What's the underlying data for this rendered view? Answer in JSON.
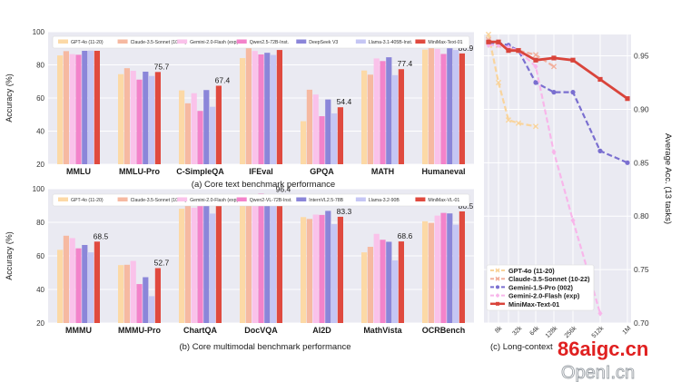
{
  "chart_data": [
    {
      "id": "text",
      "type": "bar",
      "caption": "(a) Core text benchmark performance",
      "ylabel": "Accuracy (%)",
      "ylim": [
        20,
        100
      ],
      "yticks": [
        20,
        40,
        60,
        80,
        100
      ],
      "grid": true,
      "legend_position": "top",
      "categories": [
        "MMLU",
        "MMLU-Pro",
        "C-SimpleQA",
        "IFEval",
        "GPQA",
        "MATH",
        "Humaneval"
      ],
      "series": [
        {
          "name": "GPT-4o (11-20)",
          "color": "#fcd9a6",
          "values": [
            85.7,
            74.4,
            64.6,
            84.1,
            46.0,
            76.6,
            89.2
          ]
        },
        {
          "name": "Claude-3.5-Sonnet (10-22)",
          "color": "#f6b9a1",
          "values": [
            88.3,
            78.0,
            56.8,
            90.1,
            65.0,
            74.1,
            93.7
          ]
        },
        {
          "name": "Gemini-2.0-Flash (exp)",
          "color": "#fac2ea",
          "values": [
            86.5,
            76.4,
            62.9,
            88.4,
            62.1,
            83.9,
            89.6
          ]
        },
        {
          "name": "Qwen2.5-72B-Inst.",
          "color": "#f383ca",
          "values": [
            86.1,
            71.1,
            52.2,
            86.3,
            49.0,
            82.3,
            86.6
          ]
        },
        {
          "name": "DeepSeek V3",
          "color": "#8b86d9",
          "values": [
            88.5,
            75.9,
            64.8,
            87.3,
            59.1,
            84.6,
            92.1
          ]
        },
        {
          "name": "Llama-3.1-405B-Inst.",
          "color": "#c5c6f4",
          "values": [
            88.6,
            73.3,
            54.7,
            86.0,
            50.7,
            73.8,
            89.0
          ]
        },
        {
          "name": "MiniMax-Text-01",
          "color": "#e04a3f",
          "values": [
            88.5,
            75.7,
            67.4,
            89.0,
            54.4,
            77.4,
            86.9
          ]
        }
      ],
      "labels": [
        "88.5",
        "75.7",
        "67.4",
        "89.0",
        "54.4",
        "77.4",
        "86.9"
      ]
    },
    {
      "id": "vl",
      "type": "bar",
      "caption": "(b) Core multimodal benchmark performance",
      "ylabel": "Accuracy (%)",
      "ylim": [
        20,
        100
      ],
      "yticks": [
        20,
        40,
        60,
        80,
        100
      ],
      "grid": true,
      "legend_position": "top",
      "categories": [
        "MMMU",
        "MMMU-Pro",
        "ChartQA",
        "DocVQA",
        "AI2D",
        "MathVista",
        "OCRBench"
      ],
      "series": [
        {
          "name": "GPT-4o (11-20)",
          "color": "#fcd9a6",
          "values": [
            63.6,
            54.5,
            88.1,
            91.1,
            83.1,
            62.1,
            80.6
          ]
        },
        {
          "name": "Claude-3.5-Sonnet (10-22)",
          "color": "#f6b9a1",
          "values": [
            72.0,
            54.7,
            90.8,
            94.2,
            82.0,
            65.4,
            79.7
          ]
        },
        {
          "name": "Gemini-2.0-Flash (exp)",
          "color": "#fac2ea",
          "values": [
            70.6,
            57.0,
            88.7,
            93.1,
            84.6,
            73.1,
            84.0
          ]
        },
        {
          "name": "Qwen2-VL-72B-Inst.",
          "color": "#f383ca",
          "values": [
            64.5,
            43.2,
            91.2,
            97.1,
            84.4,
            69.6,
            85.6
          ]
        },
        {
          "name": "InternVL2.5-78B",
          "color": "#8b86d9",
          "values": [
            66.5,
            47.3,
            91.5,
            96.1,
            86.8,
            68.4,
            85.3
          ]
        },
        {
          "name": "Llama-3.2-90B",
          "color": "#c5c6f4",
          "values": [
            62.1,
            36.0,
            85.2,
            90.1,
            78.9,
            57.3,
            78.6
          ]
        },
        {
          "name": "MiniMax-VL-01",
          "color": "#e04a3f",
          "values": [
            68.5,
            52.7,
            91.7,
            96.4,
            83.3,
            68.6,
            86.5
          ]
        }
      ],
      "labels": [
        "68.5",
        "52.7",
        "91.7",
        "96.4",
        "83.3",
        "68.6",
        "86.5"
      ]
    },
    {
      "id": "long",
      "type": "line",
      "caption": "(c) Long-context",
      "ylabel": "Average Acc. (13 tasks)",
      "ylim": [
        0.7,
        0.97
      ],
      "yticks": [
        0.7,
        0.75,
        0.8,
        0.85,
        0.9,
        0.95
      ],
      "ytick_labels": [
        "0.70",
        "0.75",
        "0.80",
        "0.85",
        "0.90",
        "0.95"
      ],
      "x": [
        "4k",
        "8k",
        "16k",
        "32k",
        "64k",
        "128k",
        "256k",
        "512k",
        "1M"
      ],
      "xtick_labels": [
        "8k",
        "32k",
        "64k",
        "128k",
        "256k",
        "512k",
        "1M"
      ],
      "legend_position": "lower left",
      "series": [
        {
          "name": "GPT-4o (11-20)",
          "color": "#f9d49c",
          "dashed": true,
          "marker": "x",
          "values": [
            0.97,
            0.925,
            0.89,
            0.887,
            0.884,
            null,
            null,
            null,
            null
          ]
        },
        {
          "name": "Claude-3.5-Sonnet (10-22)",
          "color": "#f2b09d",
          "dashed": true,
          "marker": "x",
          "values": [
            0.965,
            0.96,
            0.957,
            0.955,
            0.951,
            0.94,
            null,
            null,
            null
          ]
        },
        {
          "name": "Gemini-1.5-Pro (002)",
          "color": "#7a6fd0",
          "dashed": true,
          "marker": "circle",
          "values": [
            0.962,
            0.962,
            0.96,
            0.955,
            0.925,
            0.916,
            0.916,
            0.861,
            0.85
          ]
        },
        {
          "name": "Gemini-2.0-Flash (exp)",
          "color": "#f8b6ea",
          "dashed": true,
          "marker": "diamond",
          "values": [
            0.96,
            0.96,
            0.958,
            0.955,
            0.94,
            0.86,
            0.796,
            0.709,
            null
          ]
        },
        {
          "name": "MiniMax-Text-01",
          "color": "#d9443b",
          "dashed": false,
          "marker": "square",
          "values": [
            0.963,
            0.963,
            0.955,
            0.955,
            0.946,
            0.948,
            0.946,
            0.928,
            0.91
          ]
        }
      ]
    }
  ],
  "watermark": {
    "line1": "86aigc.cn",
    "line2": "OpenI.cn"
  }
}
